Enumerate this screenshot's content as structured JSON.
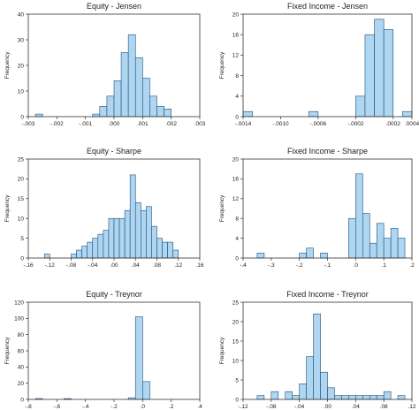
{
  "chart_data": [
    {
      "type": "bar",
      "title": "Equity - Jensen",
      "ylabel": "Frequency",
      "xlim": [
        -0.003,
        0.003
      ],
      "ylim": [
        0,
        40
      ],
      "bin_width": 0.00025,
      "bin_starts": [
        -0.00275,
        -0.00075,
        -0.0005,
        -0.00025,
        0.0,
        0.00025,
        0.0005,
        0.00075,
        0.001,
        0.00125,
        0.0015,
        0.00175
      ],
      "values": [
        1,
        1,
        4,
        8,
        14,
        25,
        32,
        23,
        15,
        8,
        4,
        3
      ],
      "x_ticks": [
        -0.003,
        -0.002,
        -0.001,
        0.0,
        0.001,
        0.002,
        0.003
      ],
      "x_tick_labels": [
        "-.003",
        "-.002",
        "-.001",
        ".000",
        ".001",
        ".002",
        ".003"
      ],
      "y_ticks": [
        0,
        10,
        20,
        30,
        40
      ],
      "y_tick_labels": [
        "0",
        "10",
        "20",
        "30",
        "40"
      ],
      "bar_color": "#aed6f1",
      "edge_color": "#1f4e79"
    },
    {
      "type": "bar",
      "title": "Fixed Income - Jensen",
      "ylabel": "Frequency",
      "xlim": [
        -0.0014,
        0.0004
      ],
      "ylim": [
        0,
        20
      ],
      "bin_width": 0.0001,
      "bin_starts": [
        -0.0014,
        -0.0007,
        -0.0002,
        -0.0001,
        0.0,
        0.0001,
        0.0002,
        0.0003
      ],
      "values": [
        1,
        1,
        4,
        16,
        19,
        17,
        0,
        1
      ],
      "x_ticks": [
        -0.0014,
        -0.001,
        -0.0006,
        -0.0002,
        0.0002,
        0.0004
      ],
      "x_tick_labels": [
        "-.0014",
        "-.0010",
        "-.0006",
        "-.0002",
        ".0002",
        ".0004"
      ],
      "y_ticks": [
        0,
        4,
        8,
        12,
        16,
        20
      ],
      "y_tick_labels": [
        "0",
        "4",
        "8",
        "12",
        "16",
        "20"
      ],
      "bar_color": "#aed6f1",
      "edge_color": "#1f4e79"
    },
    {
      "type": "bar",
      "title": "Equity - Sharpe",
      "ylabel": "Frequency",
      "xlim": [
        -0.16,
        0.16
      ],
      "ylim": [
        0,
        25
      ],
      "bin_width": 0.01,
      "bin_starts": [
        -0.13,
        -0.08,
        -0.07,
        -0.06,
        -0.05,
        -0.04,
        -0.03,
        -0.02,
        -0.01,
        0.0,
        0.01,
        0.02,
        0.03,
        0.04,
        0.05,
        0.06,
        0.07,
        0.08,
        0.09,
        0.1,
        0.11
      ],
      "values": [
        1,
        1,
        2,
        3,
        4,
        5,
        6,
        7,
        10,
        10,
        10,
        12,
        21,
        14,
        12,
        13,
        8,
        5,
        4,
        4,
        2
      ],
      "x_ticks": [
        -0.16,
        -0.12,
        -0.08,
        -0.04,
        0.0,
        0.04,
        0.08,
        0.12,
        0.16
      ],
      "x_tick_labels": [
        "-.16",
        "-.12",
        "-.08",
        "-.04",
        ".00",
        ".04",
        ".08",
        ".12",
        ".16"
      ],
      "y_ticks": [
        0,
        5,
        10,
        15,
        20,
        25
      ],
      "y_tick_labels": [
        "0",
        "5",
        "10",
        "15",
        "20",
        "25"
      ],
      "bar_color": "#aed6f1",
      "edge_color": "#1f4e79"
    },
    {
      "type": "bar",
      "title": "Fixed Income - Sharpe",
      "ylabel": "Frequency",
      "xlim": [
        -0.4,
        0.2
      ],
      "ylim": [
        0,
        20
      ],
      "bin_width": 0.025,
      "bin_starts": [
        -0.35,
        -0.2,
        -0.175,
        -0.125,
        -0.025,
        0.0,
        0.025,
        0.05,
        0.075,
        0.1,
        0.125,
        0.15
      ],
      "values": [
        1,
        1,
        2,
        1,
        8,
        17,
        9,
        3,
        7,
        4,
        6,
        4
      ],
      "x_ticks": [
        -0.4,
        -0.3,
        -0.2,
        -0.1,
        0.0,
        0.1,
        0.2
      ],
      "x_tick_labels": [
        "-.4",
        "-.3",
        "-.2",
        "-.1",
        ".0",
        ".1",
        ".2"
      ],
      "y_ticks": [
        0,
        4,
        8,
        12,
        16,
        20
      ],
      "y_tick_labels": [
        "0",
        "4",
        "8",
        "12",
        "16",
        "20"
      ],
      "bar_color": "#aed6f1",
      "edge_color": "#1f4e79"
    },
    {
      "type": "bar",
      "title": "Equity - Treynor",
      "ylabel": "Frequency",
      "xlim": [
        -0.8,
        0.4
      ],
      "ylim": [
        0,
        120
      ],
      "bin_width": 0.05,
      "bin_starts": [
        -0.75,
        -0.55,
        -0.1,
        -0.05,
        0.0
      ],
      "values": [
        1,
        1,
        2,
        102,
        22
      ],
      "x_ticks": [
        -0.8,
        -0.6,
        -0.4,
        -0.2,
        0.0,
        0.2,
        0.4
      ],
      "x_tick_labels": [
        "-.8",
        "-.6",
        "-.4",
        "-.2",
        ".0",
        ".2",
        ".4"
      ],
      "y_ticks": [
        0,
        20,
        40,
        60,
        80,
        100,
        120
      ],
      "y_tick_labels": [
        "0",
        "20",
        "40",
        "60",
        "80",
        "100",
        "120"
      ],
      "bar_color": "#aed6f1",
      "edge_color": "#1f4e79"
    },
    {
      "type": "bar",
      "title": "Fixed Income - Treynor",
      "ylabel": "Frequency",
      "xlim": [
        -0.12,
        0.12
      ],
      "ylim": [
        0,
        25
      ],
      "bin_width": 0.01,
      "bin_starts": [
        -0.1,
        -0.08,
        -0.06,
        -0.05,
        -0.04,
        -0.03,
        -0.02,
        -0.01,
        0.0,
        0.01,
        0.02,
        0.03,
        0.04,
        0.05,
        0.06,
        0.07,
        0.08,
        0.1
      ],
      "values": [
        1,
        2,
        2,
        1,
        4,
        11,
        22,
        7,
        3,
        1,
        1,
        1,
        1,
        1,
        1,
        1,
        2,
        1
      ],
      "x_ticks": [
        -0.12,
        -0.08,
        -0.04,
        0.0,
        0.04,
        0.08,
        0.12
      ],
      "x_tick_labels": [
        "-.12",
        "-.08",
        "-.04",
        ".00",
        ".04",
        ".08",
        ".12"
      ],
      "y_ticks": [
        0,
        5,
        10,
        15,
        20,
        25
      ],
      "y_tick_labels": [
        "0",
        "5",
        "10",
        "15",
        "20",
        "25"
      ],
      "bar_color": "#aed6f1",
      "edge_color": "#1f4e79"
    }
  ]
}
